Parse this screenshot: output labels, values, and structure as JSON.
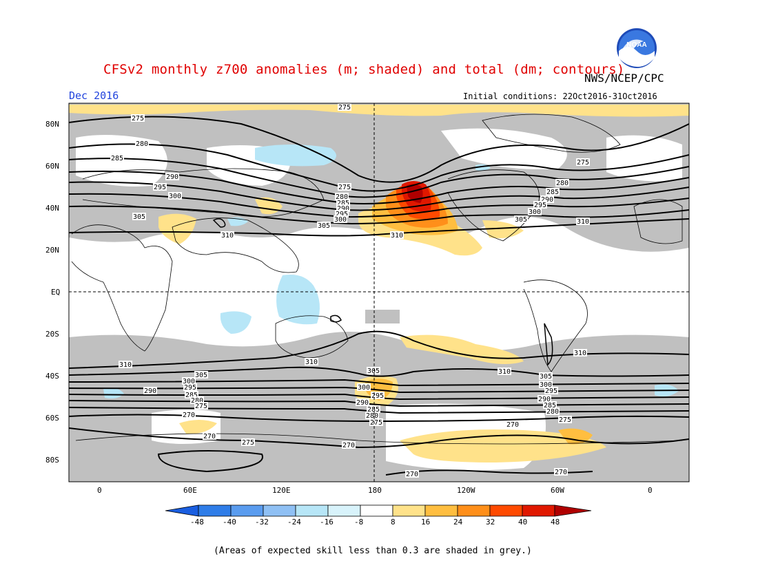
{
  "header": {
    "title": "CFSv2 monthly z700 anomalies (m; shaded) and total (dm; contours)",
    "agency": "NWS/NCEP/CPC",
    "date": "Dec 2016",
    "initial_conditions": "Initial conditions: 22Oct2016-31Oct2016",
    "logo_text": "NOAA"
  },
  "map": {
    "lat_labels": [
      "80N",
      "60N",
      "40N",
      "20N",
      "EQ",
      "20S",
      "40S",
      "60S",
      "80S"
    ],
    "lon_labels": [
      "0",
      "60E",
      "120E",
      "180",
      "120W",
      "60W",
      "0"
    ],
    "contour_labels": [
      "275",
      "280",
      "285",
      "290",
      "295",
      "300",
      "305",
      "310",
      "270"
    ],
    "colors": {
      "grey_low_skill": "#c0c0c0",
      "neg_48": "#1a5ee0",
      "neg_40": "#2f7de8",
      "neg_32": "#5a9cef",
      "neg_24": "#8fc0f4",
      "neg_16": "#b7e6f7",
      "neg_8": "#ffffff",
      "pos_8": "#ffe28a",
      "pos_16": "#ffbe40",
      "pos_24": "#ff8f1a",
      "pos_32": "#ff4a00",
      "pos_40": "#e01800",
      "pos_48": "#b00000"
    }
  },
  "colorbar": {
    "ticks": [
      "-48",
      "-40",
      "-32",
      "-24",
      "-16",
      "-8",
      "8",
      "16",
      "24",
      "32",
      "40",
      "48"
    ]
  },
  "footnote": "(Areas of expected skill less than 0.3 are shaded in grey.)"
}
